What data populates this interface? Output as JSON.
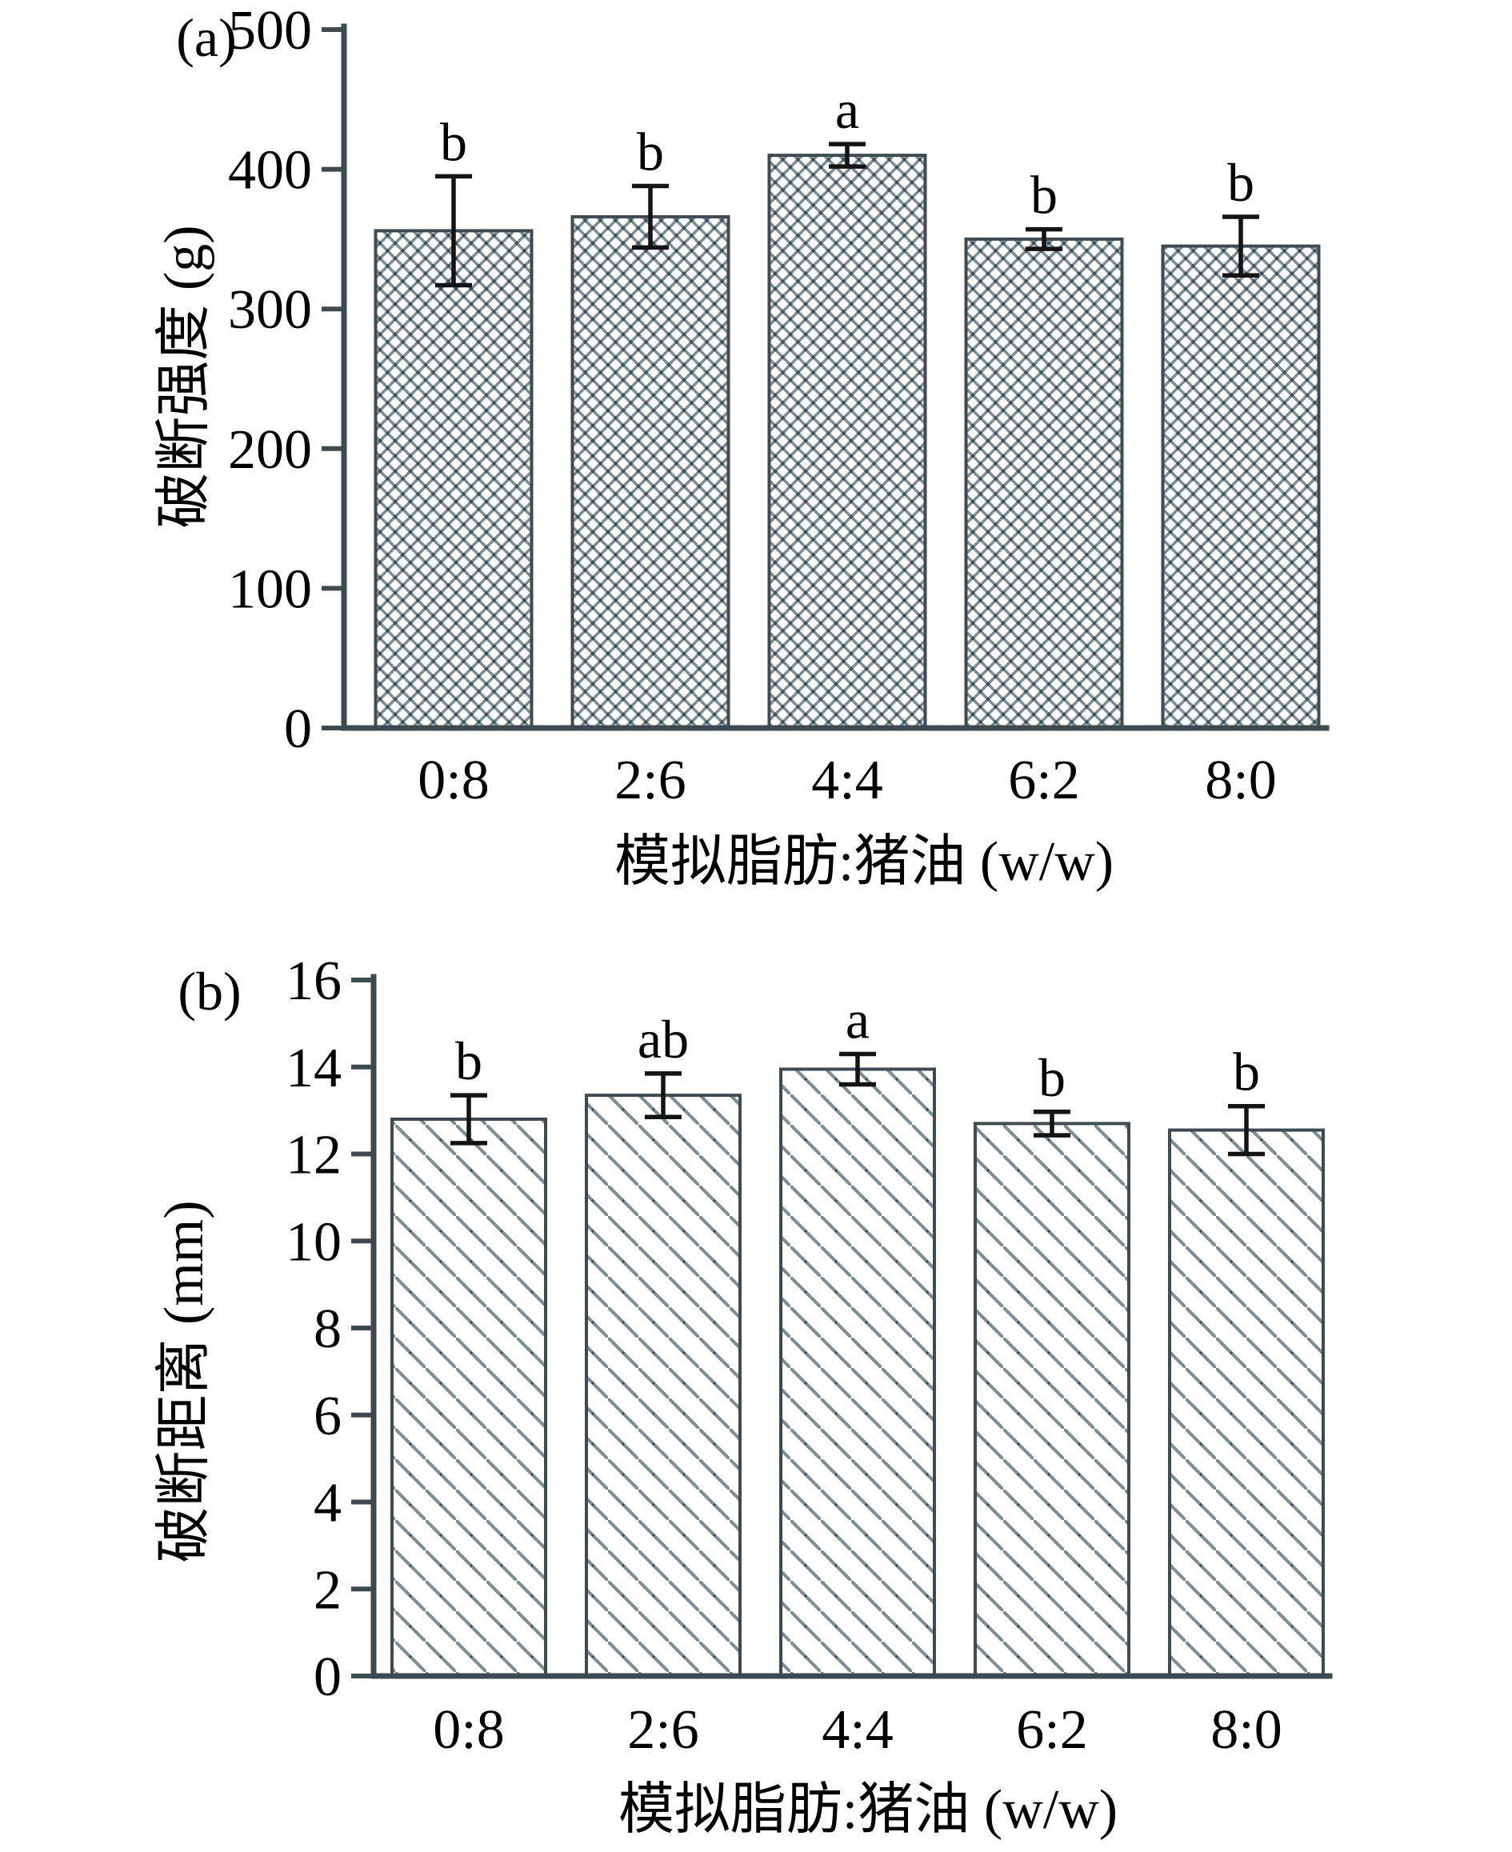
{
  "figure": {
    "description_labels": {
      "panel_a_label": "(a)",
      "panel_b_label": "(b)"
    }
  },
  "style": {
    "background": "#ffffff",
    "axis_color": "#3d4a4f",
    "bar_border_color": "#3f4b50",
    "hatch_line_color": "#7c8d94",
    "hatch_dot_color": "#3f4f56",
    "error_bar_color": "#141414",
    "text_color": "#000000"
  },
  "chart_data": [
    {
      "type": "bar",
      "panel_label": "(a)",
      "title": "",
      "categories": [
        "0:8",
        "2:6",
        "4:4",
        "6:2",
        "8:0"
      ],
      "values": [
        356,
        366,
        410,
        350,
        345
      ],
      "errors": [
        39,
        22,
        8,
        7,
        21
      ],
      "sig_letters": [
        "b",
        "b",
        "a",
        "b",
        "b"
      ],
      "ylabel": "破断强度 (g)",
      "xlabel": "模拟脂肪:猪油 (w/w)",
      "ylim": [
        0,
        500
      ],
      "yticks": [
        0,
        100,
        200,
        300,
        400,
        500
      ],
      "ytick_labels": [
        "0",
        "100",
        "200",
        "300",
        "400",
        "500"
      ],
      "hatch": "cross",
      "grid": false,
      "legend_position": "none"
    },
    {
      "type": "bar",
      "panel_label": "(b)",
      "title": "",
      "categories": [
        "0:8",
        "2:6",
        "4:4",
        "6:2",
        "8:0"
      ],
      "values": [
        12.8,
        13.35,
        13.95,
        12.7,
        12.55
      ],
      "errors": [
        0.55,
        0.5,
        0.35,
        0.27,
        0.55
      ],
      "sig_letters": [
        "b",
        "ab",
        "a",
        "b",
        "b"
      ],
      "ylabel": "破断距离 (mm)",
      "xlabel": "模拟脂肪:猪油 (w/w)",
      "ylim": [
        0,
        16
      ],
      "yticks": [
        0,
        2,
        4,
        6,
        8,
        10,
        12,
        14,
        16
      ],
      "ytick_labels": [
        "0",
        "2",
        "4",
        "6",
        "8",
        "10",
        "12",
        "14",
        "16"
      ],
      "hatch": "diagonal",
      "grid": false,
      "legend_position": "none"
    }
  ]
}
